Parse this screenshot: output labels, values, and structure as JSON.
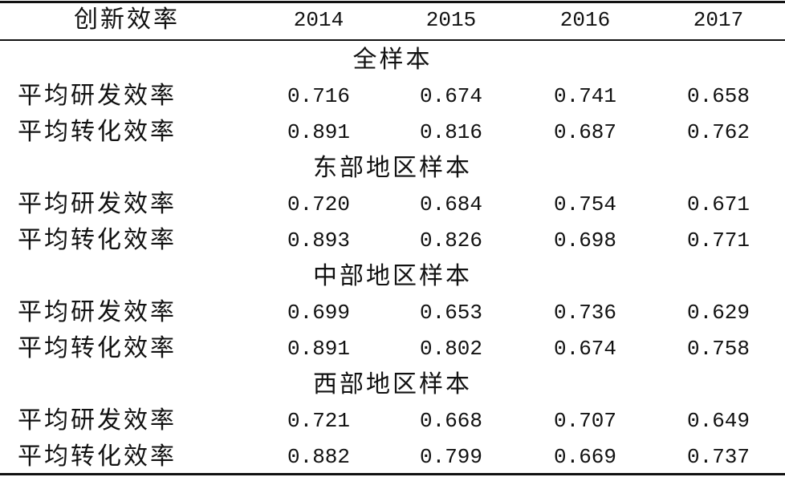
{
  "table": {
    "header": [
      "创新效率",
      "2014",
      "2015",
      "2016",
      "2017"
    ],
    "sections": [
      {
        "title": "全样本",
        "rows": [
          [
            "平均研发效率",
            "0.716",
            "0.674",
            "0.741",
            "0.658"
          ],
          [
            "平均转化效率",
            "0.891",
            "0.816",
            "0.687",
            "0.762"
          ]
        ]
      },
      {
        "title": "东部地区样本",
        "rows": [
          [
            "平均研发效率",
            "0.720",
            "0.684",
            "0.754",
            "0.671"
          ],
          [
            "平均转化效率",
            "0.893",
            "0.826",
            "0.698",
            "0.771"
          ]
        ]
      },
      {
        "title": "中部地区样本",
        "rows": [
          [
            "平均研发效率",
            "0.699",
            "0.653",
            "0.736",
            "0.629"
          ],
          [
            "平均转化效率",
            "0.891",
            "0.802",
            "0.674",
            "0.758"
          ]
        ]
      },
      {
        "title": "西部地区样本",
        "rows": [
          [
            "平均研发效率",
            "0.721",
            "0.668",
            "0.707",
            "0.649"
          ],
          [
            "平均转化效率",
            "0.882",
            "0.799",
            "0.669",
            "0.737"
          ]
        ]
      }
    ]
  }
}
